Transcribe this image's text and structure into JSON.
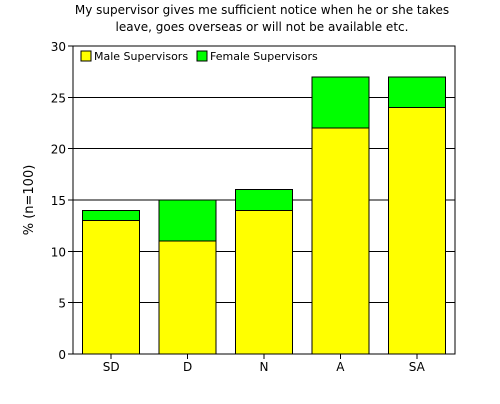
{
  "chart_data": {
    "type": "bar",
    "stacked": true,
    "title_lines": [
      "My supervisor gives me sufficient notice when he or she takes",
      "leave, goes overseas or will not be available etc."
    ],
    "xlabel": "",
    "ylabel": "% (n=100)",
    "ylim": [
      0,
      30
    ],
    "yticks": [
      0,
      5,
      10,
      15,
      20,
      25,
      30
    ],
    "grid": true,
    "legend_placement": "top-left",
    "categories": [
      "SD",
      "D",
      "N",
      "A",
      "SA"
    ],
    "series": [
      {
        "name": "Male Supervisors",
        "color": "#ffff00",
        "values": [
          13,
          11,
          14,
          22,
          24
        ]
      },
      {
        "name": "Female Supervisors",
        "color": "#00ff00",
        "values": [
          1,
          4,
          2,
          5,
          3
        ]
      }
    ]
  }
}
